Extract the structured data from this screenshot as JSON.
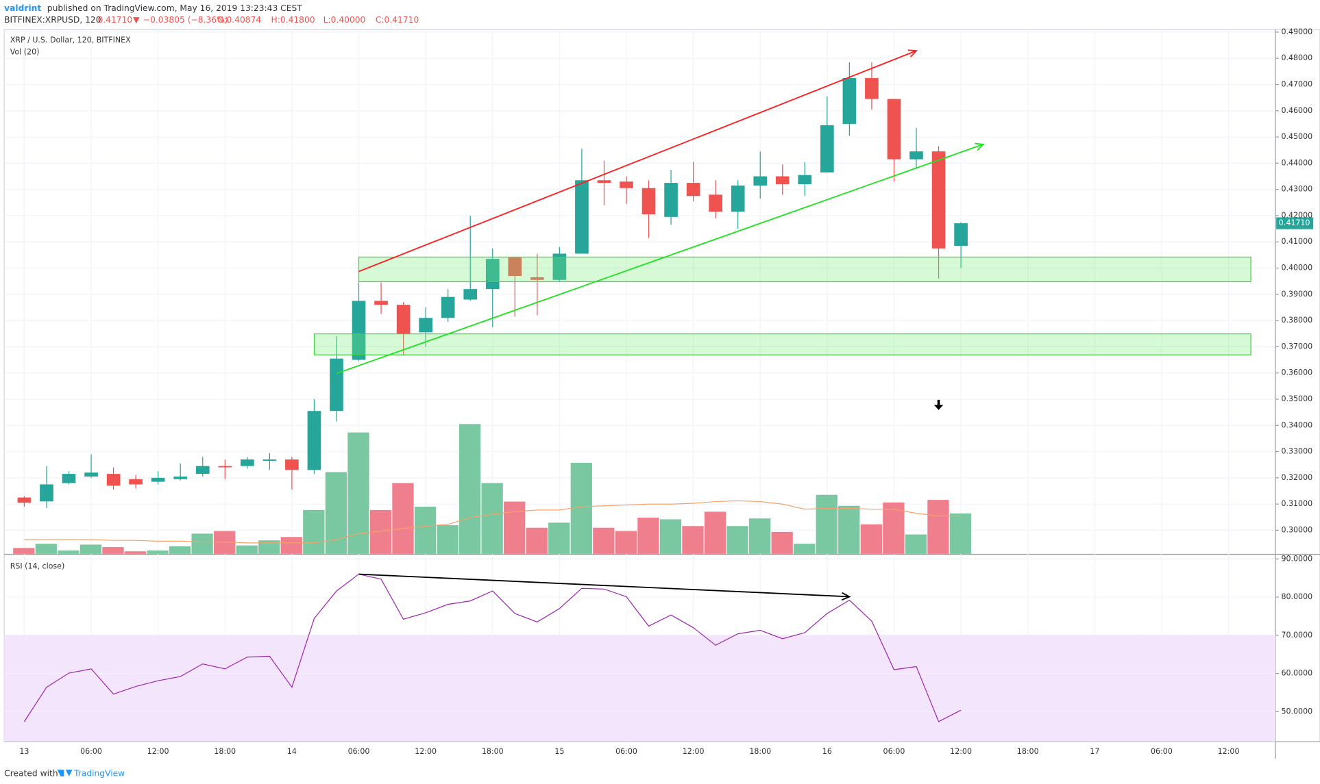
{
  "header": {
    "author": "valdrint",
    "published": "published on TradingView.com, May 16, 2019 13:23:43 CEST",
    "symbol": "BITFINEX:XRPUSD, 120",
    "last": "0.41710",
    "arrow": "▼",
    "change": "−0.03805 (−8.36%)",
    "open": "O:0.40874",
    "high": "H:0.41800",
    "low": "L:0.40000",
    "close": "C:0.41710"
  },
  "footer": {
    "created": "Created with",
    "brand": "TradingView"
  },
  "chart_data": [
    {
      "type": "candlestick",
      "title": "XRP / U.S. Dollar, 120, BITFINEX",
      "up_color": "#26a69a",
      "down_color": "#ef5350",
      "x": [
        0,
        1,
        2,
        3,
        4,
        5,
        6,
        7,
        8,
        9,
        10,
        11,
        12,
        13,
        14,
        15,
        16,
        17,
        18,
        19,
        20,
        21,
        22,
        23,
        24,
        25,
        26,
        27,
        28,
        29,
        30,
        31,
        32,
        33,
        34,
        35,
        36,
        37,
        38,
        39,
        40,
        41,
        42
      ],
      "open": [
        0.3125,
        0.311,
        0.318,
        0.3205,
        0.3215,
        0.3195,
        0.3185,
        0.3195,
        0.3215,
        0.3245,
        0.3245,
        0.3265,
        0.327,
        0.323,
        0.3455,
        0.365,
        0.3875,
        0.386,
        0.3755,
        0.381,
        0.388,
        0.392,
        0.404,
        0.3965,
        0.3955,
        0.4055,
        0.4335,
        0.433,
        0.4305,
        0.4195,
        0.4325,
        0.428,
        0.4215,
        0.4315,
        0.435,
        0.432,
        0.4365,
        0.455,
        0.4725,
        0.4645,
        0.4415,
        0.4445,
        0.4085
      ],
      "high": [
        0.313,
        0.3245,
        0.3225,
        0.329,
        0.324,
        0.321,
        0.3225,
        0.3255,
        0.328,
        0.327,
        0.328,
        0.3295,
        0.328,
        0.35,
        0.374,
        0.3945,
        0.3945,
        0.387,
        0.385,
        0.392,
        0.42,
        0.4075,
        0.404,
        0.4055,
        0.408,
        0.4455,
        0.441,
        0.435,
        0.4335,
        0.4375,
        0.4405,
        0.4335,
        0.4335,
        0.4445,
        0.4395,
        0.4405,
        0.4655,
        0.4785,
        0.4785,
        0.4645,
        0.4535,
        0.4465,
        0.4175
      ],
      "low": [
        0.309,
        0.3085,
        0.3175,
        0.32,
        0.3155,
        0.316,
        0.3175,
        0.319,
        0.3205,
        0.3195,
        0.3235,
        0.323,
        0.3155,
        0.3215,
        0.3415,
        0.3645,
        0.3825,
        0.367,
        0.37,
        0.3795,
        0.3875,
        0.3775,
        0.3815,
        0.382,
        0.395,
        0.4055,
        0.424,
        0.4245,
        0.4115,
        0.4165,
        0.4255,
        0.419,
        0.415,
        0.4265,
        0.428,
        0.4275,
        0.4365,
        0.4505,
        0.4605,
        0.433,
        0.438,
        0.396,
        0.4
      ],
      "close": [
        0.3105,
        0.3175,
        0.3215,
        0.322,
        0.317,
        0.3175,
        0.32,
        0.3205,
        0.3245,
        0.324,
        0.327,
        0.327,
        0.323,
        0.3455,
        0.3655,
        0.3875,
        0.386,
        0.375,
        0.381,
        0.389,
        0.392,
        0.4035,
        0.397,
        0.3955,
        0.4055,
        0.4335,
        0.4325,
        0.4305,
        0.4205,
        0.4325,
        0.4275,
        0.4215,
        0.4315,
        0.435,
        0.432,
        0.4355,
        0.4545,
        0.4725,
        0.4645,
        0.4415,
        0.4445,
        0.4075,
        0.4171
      ],
      "xlim": [
        -0.9,
        56.1
      ],
      "ylim": [
        0.291,
        0.491
      ],
      "yticks": [
        {
          "value": 0.3,
          "label": "0.30000"
        },
        {
          "value": 0.31,
          "label": "0.31000"
        },
        {
          "value": 0.32,
          "label": "0.32000"
        },
        {
          "value": 0.33,
          "label": "0.33000"
        },
        {
          "value": 0.34,
          "label": "0.34000"
        },
        {
          "value": 0.35,
          "label": "0.35000"
        },
        {
          "value": 0.36,
          "label": "0.36000"
        },
        {
          "value": 0.37,
          "label": "0.37000"
        },
        {
          "value": 0.38,
          "label": "0.38000"
        },
        {
          "value": 0.39,
          "label": "0.39000"
        },
        {
          "value": 0.4,
          "label": "0.40000"
        },
        {
          "value": 0.41,
          "label": "0.41000"
        },
        {
          "value": 0.42,
          "label": "0.42000"
        },
        {
          "value": 0.43,
          "label": "0.43000"
        },
        {
          "value": 0.44,
          "label": "0.44000"
        },
        {
          "value": 0.45,
          "label": "0.45000"
        },
        {
          "value": 0.46,
          "label": "0.46000"
        },
        {
          "value": 0.47,
          "label": "0.47000"
        },
        {
          "value": 0.48,
          "label": "0.48000"
        },
        {
          "value": 0.49,
          "label": "0.49000"
        }
      ],
      "grid": true,
      "last_price": {
        "value": 0.4171,
        "label": "0.41710"
      },
      "volume": {
        "name": "Vol (20)",
        "up_color": "#79c8a1",
        "down_color": "#ef7f8c",
        "ma_color": "#f6a26b",
        "values": [
          7,
          12,
          4,
          11,
          8,
          3,
          4,
          9,
          24,
          27,
          10,
          16,
          20,
          52,
          97,
          144,
          52,
          84,
          56,
          34,
          154,
          84,
          62,
          31,
          37,
          108,
          31,
          27,
          43,
          41,
          33,
          50,
          33,
          42,
          26,
          12,
          70,
          57,
          35,
          61,
          23,
          64,
          48
        ],
        "ma_values": [
          17,
          17,
          17,
          17,
          16,
          16,
          15,
          15,
          14,
          14,
          13,
          13,
          13,
          13,
          17,
          24,
          27,
          30,
          33,
          35,
          43,
          47,
          50,
          52,
          52,
          56,
          57,
          58,
          59,
          59,
          60,
          62,
          63,
          62,
          59,
          53,
          54,
          54,
          53,
          53,
          48,
          45,
          45
        ]
      },
      "trendlines": [
        {
          "color": "#ff1e1e",
          "x": [
            15,
            40
          ],
          "y": [
            0.3987,
            0.4829
          ]
        },
        {
          "color": "#22e022",
          "x": [
            14,
            43
          ],
          "y": [
            0.3598,
            0.4472
          ]
        }
      ],
      "zones": [
        {
          "x": [
            15,
            55
          ],
          "y": [
            0.3948,
            0.4042
          ]
        },
        {
          "x": [
            13,
            55
          ],
          "y": [
            0.3669,
            0.3749
          ]
        }
      ],
      "marker": {
        "x": 41,
        "y": 0.3475
      }
    },
    {
      "type": "line",
      "title": "RSI (14, close)",
      "color": "#9c27b0",
      "band_color": "#f3e5fb",
      "band_top": 70,
      "x": [
        0,
        1,
        2,
        3,
        4,
        5,
        6,
        7,
        8,
        9,
        10,
        11,
        12,
        13,
        14,
        15,
        16,
        17,
        18,
        19,
        20,
        21,
        22,
        23,
        24,
        25,
        26,
        27,
        28,
        29,
        30,
        31,
        32,
        33,
        34,
        35,
        36,
        37,
        38,
        39,
        40,
        41,
        42
      ],
      "values": [
        47.4,
        56.4,
        60.1,
        61.2,
        54.6,
        56.6,
        58.1,
        59.2,
        62.5,
        61.2,
        64.3,
        64.5,
        56.4,
        74.4,
        81.6,
        86.0,
        84.7,
        74.2,
        75.9,
        78.1,
        79.0,
        81.6,
        75.7,
        73.5,
        77.0,
        82.3,
        82.1,
        80.1,
        72.4,
        75.3,
        72.0,
        67.4,
        70.4,
        71.3,
        69.1,
        70.7,
        75.7,
        79.2,
        73.7,
        61.0,
        61.8,
        47.4,
        50.4
      ],
      "xlim": [
        -0.9,
        56.1
      ],
      "ylim": [
        42.1,
        91.1
      ],
      "yticks": [
        {
          "value": 50,
          "label": "50.0000"
        },
        {
          "value": 60,
          "label": "60.0000"
        },
        {
          "value": 70,
          "label": "70.0000"
        },
        {
          "value": 80,
          "label": "80.0000"
        },
        {
          "value": 90,
          "label": "90.0000"
        }
      ],
      "xticks": [
        {
          "value": 0,
          "label": "13"
        },
        {
          "value": 3,
          "label": "06:00"
        },
        {
          "value": 6,
          "label": "12:00"
        },
        {
          "value": 9,
          "label": "18:00"
        },
        {
          "value": 12,
          "label": "14"
        },
        {
          "value": 15,
          "label": "06:00"
        },
        {
          "value": 18,
          "label": "12:00"
        },
        {
          "value": 21,
          "label": "18:00"
        },
        {
          "value": 24,
          "label": "15"
        },
        {
          "value": 27,
          "label": "06:00"
        },
        {
          "value": 30,
          "label": "12:00"
        },
        {
          "value": 33,
          "label": "18:00"
        },
        {
          "value": 36,
          "label": "16"
        },
        {
          "value": 39,
          "label": "06:00"
        },
        {
          "value": 42,
          "label": "12:00"
        },
        {
          "value": 45,
          "label": "18:00"
        },
        {
          "value": 48,
          "label": "17"
        },
        {
          "value": 51,
          "label": "06:00"
        },
        {
          "value": 54,
          "label": "12:00"
        }
      ],
      "grid": true,
      "divergence": {
        "color": "#000000",
        "x": [
          15,
          37
        ],
        "y": [
          86.0,
          80.1
        ]
      }
    }
  ]
}
